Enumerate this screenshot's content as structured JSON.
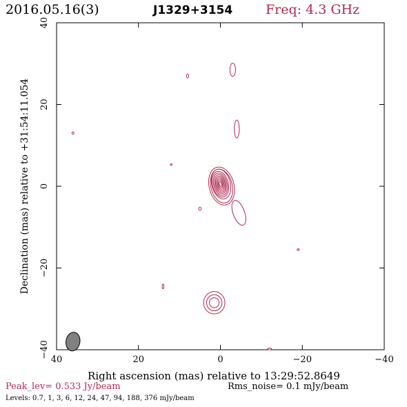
{
  "header": {
    "date": "2016.05.16(3)",
    "source": "J1329+3154",
    "freq": "Freq: 4.3 GHz",
    "freq_color": "#b0284f"
  },
  "footer": {
    "peak": "Peak_lev=  0.533 Jy/beam",
    "rms": "Rms_noise=  0.1 mJy/beam",
    "levels": "Levels: 0.7,    1,    3,    6,   12,   24,   47,   94, 188, 376 mJy/beam"
  },
  "chart_data": {
    "type": "contour",
    "title": "J1329+3154",
    "xlabel": "Right ascension (mas) relative to 13:29:52.8649",
    "ylabel": "Declination (mas) relative to +31:54:11.054",
    "xlim": [
      40,
      -40
    ],
    "ylim": [
      -40,
      40
    ],
    "xticks": [
      40,
      20,
      0,
      -20,
      -40
    ],
    "yticks": [
      -40,
      -20,
      0,
      20,
      40
    ],
    "contour_color": "#b0284f",
    "beam_color": "#808080",
    "peak_jy_per_beam": 0.533,
    "rms_mjy_per_beam": 0.1,
    "contour_levels_mjy_per_beam": [
      0.7,
      1,
      3,
      6,
      12,
      24,
      47,
      94,
      188,
      376
    ],
    "beam": {
      "x": 36,
      "y": -38,
      "major_mas": 4.6,
      "minor_mas": 3.4,
      "pa_deg": 10
    },
    "core": {
      "x": 0,
      "y": 0.5
    },
    "features": [
      {
        "name": "extension",
        "x": -4.5,
        "y": -6.5,
        "rx": 1.4,
        "ry": 3.2
      },
      {
        "name": "blob",
        "x": 1.5,
        "y": -28.5,
        "rx": 2.6,
        "ry": 2.6
      },
      {
        "name": "spot",
        "x": -4,
        "y": 14,
        "rx": 0.6,
        "ry": 2.2
      },
      {
        "name": "spot",
        "x": -3,
        "y": 28.5,
        "rx": 0.7,
        "ry": 1.6
      },
      {
        "name": "spot",
        "x": 8,
        "y": 27,
        "rx": 0.25,
        "ry": 0.5
      },
      {
        "name": "spot",
        "x": 36,
        "y": 13,
        "rx": 0.25,
        "ry": 0.3
      },
      {
        "name": "spot",
        "x": 12,
        "y": 5.3,
        "rx": 0.2,
        "ry": 0.2
      },
      {
        "name": "spot",
        "x": 5,
        "y": -5.5,
        "rx": 0.3,
        "ry": 0.4
      },
      {
        "name": "spot",
        "x": 14,
        "y": -24.5,
        "rx": 0.2,
        "ry": 0.6
      },
      {
        "name": "spot",
        "x": -19,
        "y": -15.5,
        "rx": 0.25,
        "ry": 0.2
      },
      {
        "name": "spot",
        "x": -12,
        "y": -39.8,
        "rx": 0.5,
        "ry": 0.2
      }
    ]
  }
}
